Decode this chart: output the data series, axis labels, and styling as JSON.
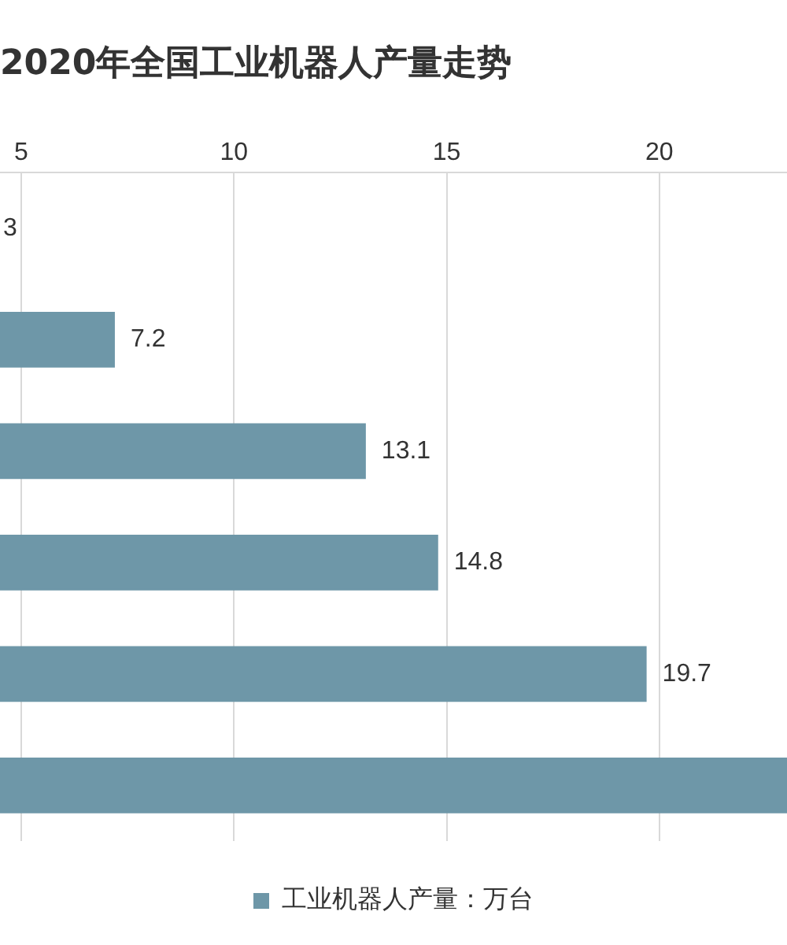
{
  "chart_data": {
    "type": "bar",
    "orientation": "horizontal",
    "title": "2020年全国工业机器人产量走势",
    "categories": [
      null,
      null,
      null,
      null,
      null,
      null
    ],
    "series": [
      {
        "name": "工业机器人产量：万台",
        "color": "#6e97a8",
        "values": [
          null,
          7.2,
          13.1,
          14.8,
          19.7,
          23
        ]
      }
    ],
    "value_labels": [
      "3",
      "7.2",
      "13.1",
      "14.8",
      "19.7",
      null
    ],
    "xlim": [
      4.5,
      23
    ],
    "xticks": [
      5,
      10,
      15,
      20
    ],
    "grid": "x",
    "legend": "bottom",
    "tick_labels": "x"
  }
}
